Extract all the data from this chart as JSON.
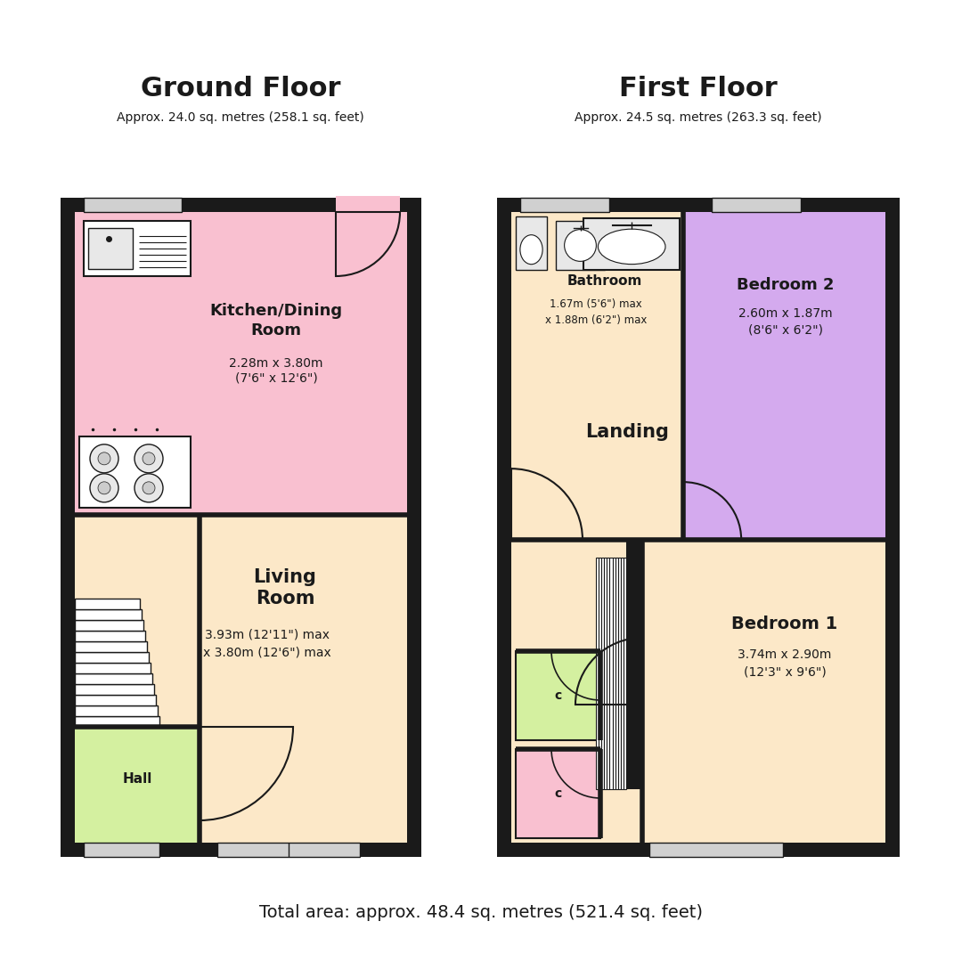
{
  "bg_color": "#ffffff",
  "wall_color": "#1a1a1a",
  "colors": {
    "kitchen": "#f9c0d0",
    "living": "#fce8c8",
    "hall": "#d4f0a0",
    "landing": "#fce8c8",
    "bathroom": "#fce8c8",
    "bedroom1": "#fce8c8",
    "bedroom2": "#d4aaee",
    "closet1": "#d4f0a0",
    "closet2": "#f9c0d0",
    "fixture_white": "#ffffff",
    "fixture_gray": "#e8e8e8",
    "stair": "#f0f0f0",
    "window": "#d0d0d0"
  },
  "ground_floor_title": "Ground Floor",
  "ground_floor_sub": "Approx. 24.0 sq. metres (258.1 sq. feet)",
  "first_floor_title": "First Floor",
  "first_floor_sub": "Approx. 24.5 sq. metres (263.3 sq. feet)",
  "total_area": "Total area: approx. 48.4 sq. metres (521.4 sq. feet)"
}
